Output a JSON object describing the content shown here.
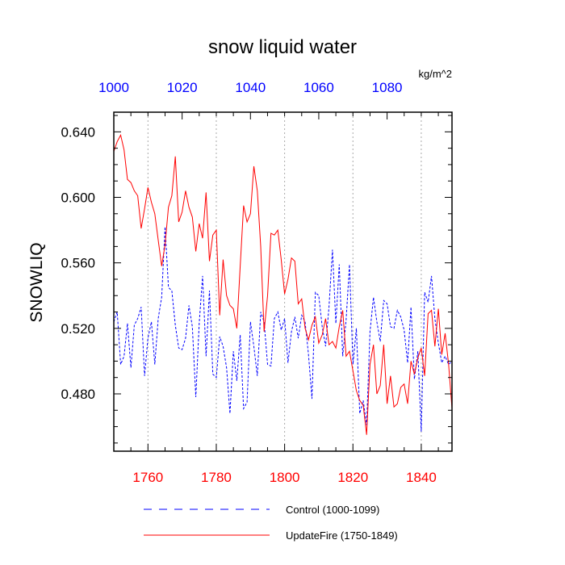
{
  "chart_data": {
    "type": "line",
    "title": "snow liquid water",
    "units": "kg/m^2",
    "ylabel": "SNOWLIQ",
    "ylim": [
      0.445,
      0.652
    ],
    "yticks": [
      0.48,
      0.52,
      0.56,
      0.6,
      0.64
    ],
    "ytick_labels": [
      "0.480",
      "0.520",
      "0.560",
      "0.600",
      "0.640"
    ],
    "top_axis": {
      "range": [
        1000,
        1099
      ],
      "ticks": [
        1000,
        1020,
        1040,
        1060,
        1080
      ],
      "tick_labels": [
        "1000",
        "1020",
        "1040",
        "1060",
        "1080"
      ],
      "color": "#0000ff"
    },
    "bottom_axis": {
      "range": [
        1750,
        1849
      ],
      "ticks": [
        1760,
        1780,
        1800,
        1820,
        1840
      ],
      "tick_labels": [
        "1760",
        "1780",
        "1800",
        "1820",
        "1840"
      ],
      "color": "#ff0000"
    },
    "grid": "vertical dotted at major bottom ticks",
    "legend_position": "bottom",
    "series": [
      {
        "name": "Control (1000-1099)",
        "color": "#0000ff",
        "style": "dashed",
        "axis": "top",
        "x_start": 1000,
        "values": [
          0.524,
          0.53,
          0.498,
          0.503,
          0.523,
          0.496,
          0.522,
          0.526,
          0.533,
          0.491,
          0.514,
          0.524,
          0.498,
          0.526,
          0.539,
          0.582,
          0.545,
          0.543,
          0.522,
          0.508,
          0.507,
          0.514,
          0.534,
          0.521,
          0.478,
          0.523,
          0.552,
          0.503,
          0.543,
          0.492,
          0.49,
          0.515,
          0.509,
          0.496,
          0.468,
          0.506,
          0.488,
          0.516,
          0.471,
          0.475,
          0.524,
          0.509,
          0.491,
          0.53,
          0.524,
          0.498,
          0.497,
          0.526,
          0.53,
          0.519,
          0.526,
          0.499,
          0.518,
          0.527,
          0.514,
          0.528,
          0.524,
          0.504,
          0.477,
          0.542,
          0.54,
          0.521,
          0.509,
          0.533,
          0.568,
          0.523,
          0.559,
          0.503,
          0.525,
          0.559,
          0.498,
          0.52,
          0.468,
          0.476,
          0.461,
          0.518,
          0.539,
          0.524,
          0.512,
          0.537,
          0.535,
          0.521,
          0.52,
          0.531,
          0.527,
          0.519,
          0.499,
          0.533,
          0.489,
          0.506,
          0.457,
          0.542,
          0.536,
          0.552,
          0.526,
          0.511,
          0.499,
          0.503,
          0.498,
          0.5
        ]
      },
      {
        "name": "UpdateFire (1750-1849)",
        "color": "#ff0000",
        "style": "solid",
        "axis": "bottom",
        "x_start": 1750,
        "values": [
          0.628,
          0.634,
          0.638,
          0.629,
          0.611,
          0.609,
          0.604,
          0.601,
          0.581,
          0.593,
          0.606,
          0.597,
          0.59,
          0.574,
          0.558,
          0.571,
          0.594,
          0.601,
          0.625,
          0.585,
          0.591,
          0.604,
          0.594,
          0.588,
          0.567,
          0.584,
          0.575,
          0.603,
          0.561,
          0.577,
          0.58,
          0.528,
          0.562,
          0.54,
          0.534,
          0.532,
          0.52,
          0.558,
          0.595,
          0.585,
          0.59,
          0.619,
          0.604,
          0.57,
          0.518,
          0.54,
          0.578,
          0.577,
          0.58,
          0.562,
          0.541,
          0.55,
          0.563,
          0.561,
          0.535,
          0.538,
          0.52,
          0.513,
          0.522,
          0.527,
          0.511,
          0.516,
          0.526,
          0.51,
          0.512,
          0.508,
          0.521,
          0.531,
          0.503,
          0.506,
          0.494,
          0.482,
          0.476,
          0.473,
          0.455,
          0.498,
          0.51,
          0.48,
          0.485,
          0.51,
          0.474,
          0.491,
          0.472,
          0.474,
          0.484,
          0.486,
          0.474,
          0.5,
          0.492,
          0.502,
          0.508,
          0.491,
          0.529,
          0.531,
          0.509,
          0.532,
          0.504,
          0.517,
          0.498,
          0.471
        ]
      }
    ]
  }
}
